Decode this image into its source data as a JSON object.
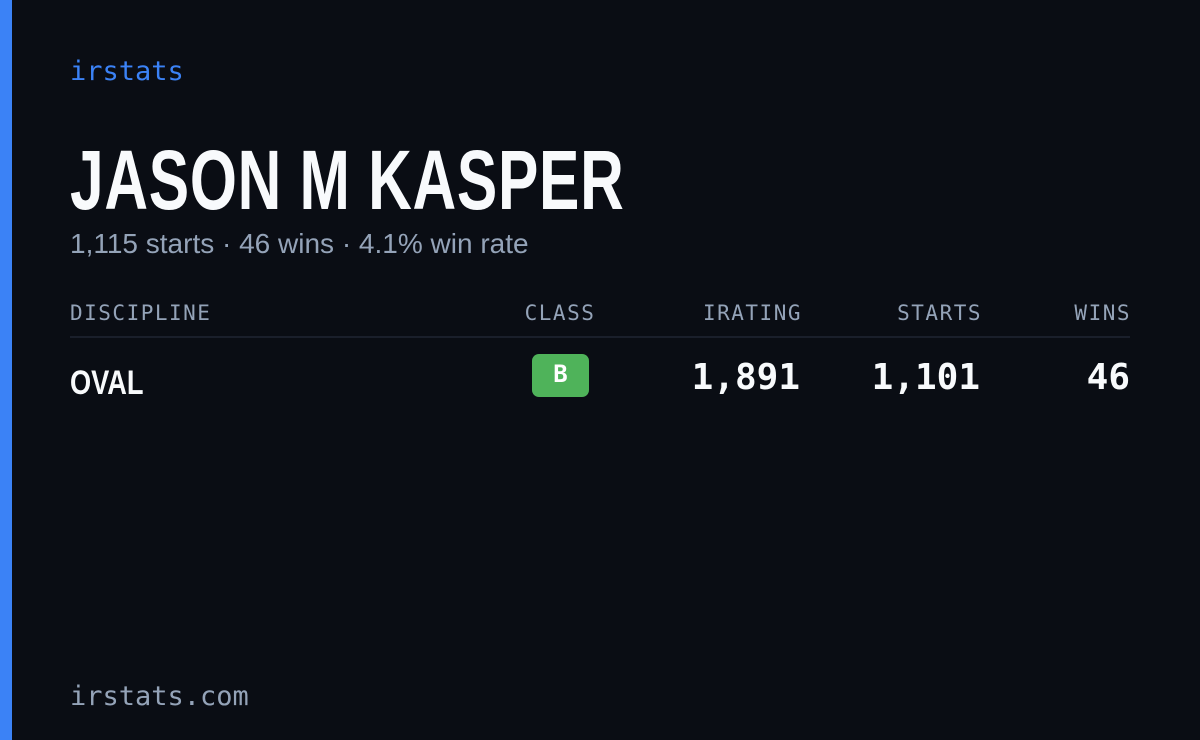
{
  "brand": "irstats",
  "driver": {
    "name": "JASON M KASPER",
    "summary": "1,115 starts · 46 wins · 4.1% win rate"
  },
  "table": {
    "headers": [
      "DISCIPLINE",
      "CLASS",
      "IRATING",
      "STARTS",
      "WINS"
    ],
    "rows": [
      [
        "OVAL",
        "B",
        "1,891",
        "1,101",
        "46"
      ]
    ]
  },
  "footer": "irstats.com"
}
